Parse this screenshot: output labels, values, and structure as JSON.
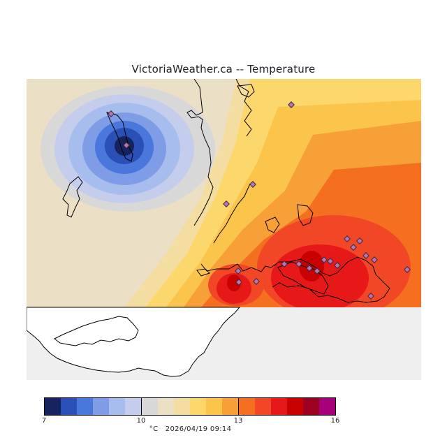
{
  "header": {
    "title": "VictoriaWeather.ca -- Temperature"
  },
  "map": {
    "sea_color": "#efefef",
    "land_color": "#ffffff",
    "station_color": "#c06fb9",
    "station_count": 22
  },
  "legend": {
    "unit": "°C",
    "timestamp": "2026/04/19 09:14",
    "tick_labels": [
      "7",
      "10",
      "13",
      "16"
    ],
    "min": 7,
    "max": 16,
    "colors": [
      "#16235e",
      "#2a50b6",
      "#4a77dc",
      "#7e9de6",
      "#a7bdee",
      "#c5cdec",
      "#d8d8d8",
      "#ebe0c6",
      "#f4dda0",
      "#fcd86c",
      "#fbc54c",
      "#f8a038",
      "#f47020",
      "#f24726",
      "#e71818",
      "#c80000",
      "#9c0020",
      "#a8007a"
    ]
  }
}
